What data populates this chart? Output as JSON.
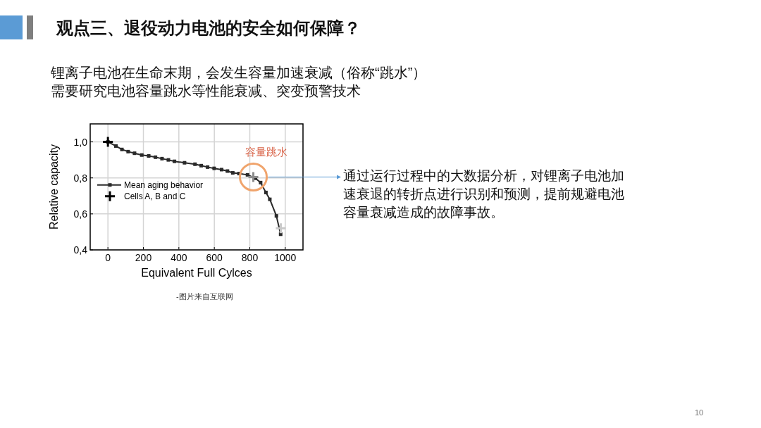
{
  "chart_data": {
    "type": "line",
    "title": "观点三、退役动力电池的安全如何保障？",
    "subtitle": "锂离子电池在生命末期，会发生容量加速衰减（俗称“跳水”）",
    "xlabel": "Equivalent Full Cylces",
    "ylabel": "Relative capacity",
    "xlim": [
      -100,
      1100
    ],
    "ylim": [
      0.4,
      1.1
    ],
    "xticks": [
      0,
      200,
      400,
      600,
      800,
      1000
    ],
    "yticks": [
      {
        "value": 0.4,
        "label": "0,4"
      },
      {
        "value": 0.6,
        "label": "0,6"
      },
      {
        "value": 0.8,
        "label": "0,8"
      },
      {
        "value": 1.0,
        "label": "1,0"
      }
    ],
    "grid": true,
    "legend": "left",
    "series": [
      {
        "name": "Mean aging behavior",
        "marker": "square",
        "color": "#2a2a2a",
        "x": [
          0,
          45,
          79,
          114,
          150,
          191,
          230,
          268,
          305,
          341,
          375,
          432,
          491,
          526,
          562,
          599,
          641,
          674,
          704,
          739,
          787,
          832,
          861,
          891,
          913,
          950,
          974
        ],
        "values": [
          1.0,
          0.977,
          0.958,
          0.946,
          0.937,
          0.927,
          0.922,
          0.915,
          0.907,
          0.9,
          0.892,
          0.884,
          0.876,
          0.868,
          0.86,
          0.853,
          0.846,
          0.838,
          0.828,
          0.824,
          0.817,
          0.798,
          0.774,
          0.719,
          0.681,
          0.589,
          0.487
        ]
      },
      {
        "name": "Cells A, B and C",
        "type": "scatter",
        "marker": "cross",
        "color": "#000000",
        "colors": [
          "#000000",
          "#8c8c8c",
          "#c8c8c8"
        ],
        "x": [
          0,
          820,
          975
        ],
        "values": [
          1.0,
          0.805,
          0.52
        ]
      }
    ],
    "annotations": [
      {
        "text": "容量跳水",
        "x": 820,
        "y": 0.805
      },
      "需要研究电池容量跳水等性能衰减、突变预警技术",
      "通过运行过程中的大数据分析，对锂离子电池加速衰退的转折点进行识别和预测，提前规避电池容量衰减造成的故障事故。",
      "-图片来自互联网",
      "10"
    ]
  }
}
